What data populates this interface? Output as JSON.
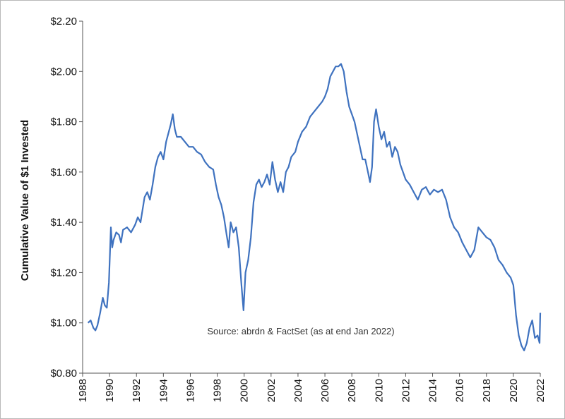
{
  "chart_data": {
    "type": "line",
    "ylabel": "Cumulative Value of $1 Invested",
    "annotation": "Source: abrdn & FactSet (as at end Jan 2022)",
    "xlim": [
      1988,
      2022
    ],
    "ylim": [
      0.8,
      2.2
    ],
    "x_ticks": [
      "1988",
      "1990",
      "1992",
      "1994",
      "1996",
      "1998",
      "2000",
      "2002",
      "2004",
      "2006",
      "2008",
      "2010",
      "2012",
      "2014",
      "2016",
      "2018",
      "2020",
      "2022"
    ],
    "y_ticks": [
      "$0.80",
      "$1.00",
      "$1.20",
      "$1.40",
      "$1.60",
      "$1.80",
      "$2.00",
      "$2.20"
    ],
    "grid": false,
    "line_color": "#3f72bf",
    "series": [
      {
        "x": [
          1988.4,
          1988.6,
          1988.8,
          1988.95,
          1989.1,
          1989.3,
          1989.5,
          1989.65,
          1989.8,
          1989.95,
          1990.1,
          1990.2,
          1990.3,
          1990.5,
          1990.7,
          1990.85,
          1991.0,
          1991.3,
          1991.6,
          1991.9,
          1992.1,
          1992.3,
          1992.6,
          1992.8,
          1993.0,
          1993.2,
          1993.4,
          1993.6,
          1993.8,
          1994.0,
          1994.2,
          1994.4,
          1994.55,
          1994.7,
          1994.85,
          1995.0,
          1995.3,
          1995.6,
          1995.9,
          1996.2,
          1996.5,
          1996.8,
          1997.1,
          1997.4,
          1997.7,
          1997.9,
          1998.1,
          1998.3,
          1998.5,
          1998.7,
          1998.85,
          1999.0,
          1999.2,
          1999.4,
          1999.6,
          1999.8,
          1999.95,
          2000.1,
          2000.3,
          2000.5,
          2000.7,
          2000.9,
          2001.1,
          2001.3,
          2001.5,
          2001.7,
          2001.9,
          2002.1,
          2002.3,
          2002.5,
          2002.7,
          2002.9,
          2003.1,
          2003.3,
          2003.5,
          2003.8,
          2004.0,
          2004.3,
          2004.6,
          2004.9,
          2005.2,
          2005.5,
          2005.8,
          2006.0,
          2006.2,
          2006.4,
          2006.6,
          2006.8,
          2007.0,
          2007.2,
          2007.4,
          2007.6,
          2007.8,
          2008.0,
          2008.2,
          2008.4,
          2008.6,
          2008.8,
          2009.0,
          2009.2,
          2009.35,
          2009.5,
          2009.65,
          2009.8,
          2010.0,
          2010.2,
          2010.4,
          2010.6,
          2010.8,
          2011.0,
          2011.2,
          2011.4,
          2011.6,
          2011.8,
          2012.0,
          2012.3,
          2012.6,
          2012.9,
          2013.2,
          2013.5,
          2013.8,
          2014.1,
          2014.4,
          2014.7,
          2015.0,
          2015.3,
          2015.6,
          2015.9,
          2016.2,
          2016.5,
          2016.8,
          2017.1,
          2017.4,
          2017.7,
          2018.0,
          2018.3,
          2018.6,
          2018.9,
          2019.2,
          2019.5,
          2019.8,
          2020.0,
          2020.2,
          2020.4,
          2020.6,
          2020.8,
          2021.0,
          2021.2,
          2021.4,
          2021.6,
          2021.8,
          2021.95,
          2022.0
        ],
        "y": [
          1.0,
          1.01,
          0.98,
          0.97,
          0.99,
          1.04,
          1.1,
          1.07,
          1.06,
          1.16,
          1.38,
          1.3,
          1.33,
          1.36,
          1.35,
          1.32,
          1.37,
          1.38,
          1.36,
          1.39,
          1.42,
          1.4,
          1.5,
          1.52,
          1.49,
          1.55,
          1.62,
          1.66,
          1.68,
          1.65,
          1.72,
          1.76,
          1.79,
          1.83,
          1.77,
          1.74,
          1.74,
          1.72,
          1.7,
          1.7,
          1.68,
          1.67,
          1.64,
          1.62,
          1.61,
          1.55,
          1.5,
          1.47,
          1.42,
          1.35,
          1.3,
          1.4,
          1.36,
          1.38,
          1.3,
          1.15,
          1.05,
          1.2,
          1.25,
          1.34,
          1.48,
          1.55,
          1.57,
          1.54,
          1.56,
          1.59,
          1.55,
          1.64,
          1.57,
          1.52,
          1.56,
          1.52,
          1.6,
          1.62,
          1.66,
          1.68,
          1.72,
          1.76,
          1.78,
          1.82,
          1.84,
          1.86,
          1.88,
          1.9,
          1.93,
          1.98,
          2.0,
          2.02,
          2.02,
          2.03,
          2.0,
          1.92,
          1.86,
          1.83,
          1.8,
          1.75,
          1.7,
          1.65,
          1.65,
          1.6,
          1.56,
          1.62,
          1.8,
          1.85,
          1.78,
          1.73,
          1.76,
          1.7,
          1.72,
          1.66,
          1.7,
          1.68,
          1.63,
          1.6,
          1.57,
          1.55,
          1.52,
          1.49,
          1.53,
          1.54,
          1.51,
          1.53,
          1.52,
          1.53,
          1.49,
          1.42,
          1.38,
          1.36,
          1.32,
          1.29,
          1.26,
          1.29,
          1.38,
          1.36,
          1.34,
          1.33,
          1.3,
          1.25,
          1.23,
          1.2,
          1.18,
          1.15,
          1.03,
          0.95,
          0.91,
          0.89,
          0.92,
          0.98,
          1.01,
          0.94,
          0.95,
          0.92,
          1.04
        ]
      }
    ]
  }
}
